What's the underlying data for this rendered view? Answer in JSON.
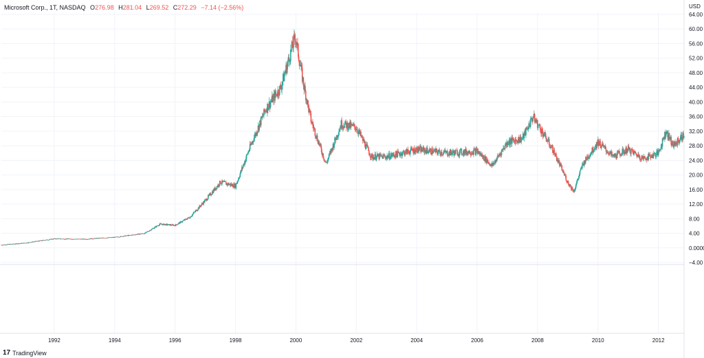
{
  "header": {
    "symbol": "Microsoft Corp., 1T, NASDAQ",
    "open_label": "O",
    "open": "276.98",
    "high_label": "H",
    "high": "281.04",
    "low_label": "L",
    "low": "269.52",
    "close_label": "C",
    "close": "272.29",
    "change": "−7.14 (−2.56%)"
  },
  "currency": "USD",
  "footer": {
    "logo_glyph": "17",
    "brand": "TradingView"
  },
  "colors": {
    "up": "#26a69a",
    "down": "#ef5350",
    "grid": "#f0f3fa",
    "axis_text": "#131722"
  },
  "chart_data": {
    "type": "candlestick",
    "title": "",
    "y_axis_ticks": [
      "64.00",
      "60.00",
      "56.00",
      "52.00",
      "48.00",
      "44.00",
      "40.00",
      "36.00",
      "32.00",
      "28.00",
      "24.00",
      "20.00",
      "16.00",
      "12.00",
      "8.00",
      "4.00",
      "0.0000",
      "−4.00"
    ],
    "x_axis_ticks": [
      "1992",
      "1994",
      "1996",
      "1998",
      "2000",
      "2002",
      "2004",
      "2006",
      "2008",
      "2010",
      "2012"
    ],
    "ylim": [
      -4,
      64
    ],
    "xlim": [
      1990.25,
      2012.85
    ],
    "grid": true,
    "series": [
      {
        "x": [
          1990.25,
          1991.0,
          1992.0,
          1993.0,
          1994.0,
          1995.0,
          1995.5,
          1996.0,
          1996.5,
          1997.0,
          1997.5,
          1998.0,
          1998.5,
          1999.0,
          1999.5,
          1999.98,
          2000.25,
          2000.5,
          2001.0,
          2001.5,
          2002.0,
          2002.5,
          2003.0,
          2004.0,
          2005.0,
          2006.0,
          2006.5,
          2007.0,
          2007.5,
          2007.85,
          2008.5,
          2009.0,
          2009.2,
          2009.5,
          2010.0,
          2010.5,
          2011.0,
          2011.5,
          2012.0,
          2012.25,
          2012.5,
          2012.85
        ],
        "values": [
          0.8,
          1.3,
          2.5,
          2.4,
          2.9,
          4.0,
          6.5,
          6.2,
          8.5,
          13.0,
          18.0,
          17.0,
          28.0,
          38.0,
          44.0,
          58.0,
          45.0,
          35.0,
          23.0,
          34.0,
          33.0,
          25.0,
          25.0,
          27.0,
          26.0,
          26.5,
          22.5,
          29.0,
          30.0,
          36.0,
          27.0,
          18.0,
          15.5,
          23.0,
          29.0,
          25.0,
          27.0,
          24.5,
          26.0,
          32.0,
          28.0,
          31.0
        ]
      }
    ]
  }
}
